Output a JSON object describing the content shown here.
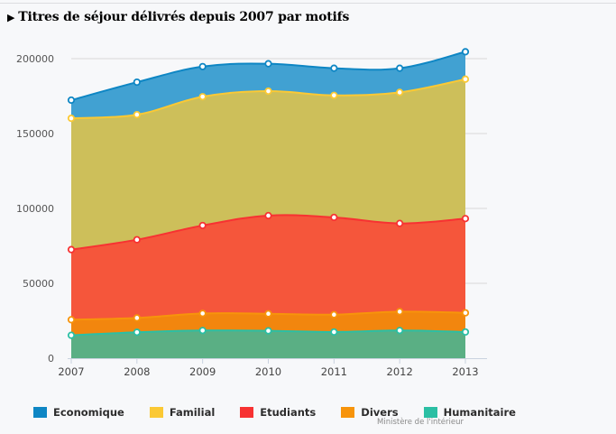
{
  "title": "Titres de séjour délivrés depuis 2007 par motifs",
  "title_icon": "play-triangle-icon",
  "credit": "Ministère de l'intérieur",
  "chart_data": {
    "type": "area",
    "stacked": true,
    "title": "Titres de séjour délivrés depuis 2007 par motifs",
    "xlabel": "",
    "ylabel": "",
    "x": [
      "2007",
      "2008",
      "2009",
      "2010",
      "2011",
      "2012",
      "2013"
    ],
    "ylim": [
      0,
      210000
    ],
    "yticks": [
      0,
      50000,
      100000,
      150000,
      200000
    ],
    "ytick_labels": [
      "0",
      "50000",
      "100000",
      "150000",
      "200000"
    ],
    "grid": true,
    "legend_position": "bottom-left",
    "series": [
      {
        "name": "Humanitaire",
        "fill": "#5aaf84",
        "line": "#2bbfa4",
        "values": [
          15300,
          17300,
          18500,
          18300,
          17500,
          18500,
          17500
        ]
      },
      {
        "name": "Divers",
        "fill": "#f2860e",
        "line": "#f7940b",
        "values": [
          10400,
          9600,
          11400,
          11400,
          11600,
          12600,
          12800
        ]
      },
      {
        "name": "Etudiants",
        "fill": "#f5563b",
        "line": "#f73232",
        "values": [
          46800,
          52200,
          58700,
          65500,
          64900,
          58900,
          62900
        ]
      },
      {
        "name": "Familial",
        "fill": "#cdbf5a",
        "line": "#fbc934",
        "values": [
          87700,
          83500,
          86000,
          83100,
          81500,
          87500,
          93100
        ]
      },
      {
        "name": "Economique",
        "fill": "#41a1d2",
        "line": "#0e86c4",
        "values": [
          12100,
          21700,
          20100,
          18300,
          18100,
          16100,
          18300
        ]
      }
    ],
    "stacked_totals": {
      "Humanitaire": [
        15300,
        17300,
        18500,
        18300,
        17500,
        18500,
        17500
      ],
      "Divers": [
        25700,
        26900,
        29900,
        29700,
        29100,
        31100,
        30300
      ],
      "Etudiants": [
        72500,
        79100,
        88600,
        95200,
        94000,
        90000,
        93200
      ],
      "Familial": [
        160200,
        162600,
        174600,
        178300,
        175500,
        177500,
        186300
      ],
      "Economique": [
        172300,
        184300,
        194700,
        196600,
        193600,
        193600,
        204600
      ]
    }
  },
  "legend": [
    {
      "label": "Economique",
      "color": "#0e86c4"
    },
    {
      "label": "Familial",
      "color": "#fbc934"
    },
    {
      "label": "Etudiants",
      "color": "#f73232"
    },
    {
      "label": "Divers",
      "color": "#f7940b"
    },
    {
      "label": "Humanitaire",
      "color": "#2bbfa4"
    }
  ]
}
